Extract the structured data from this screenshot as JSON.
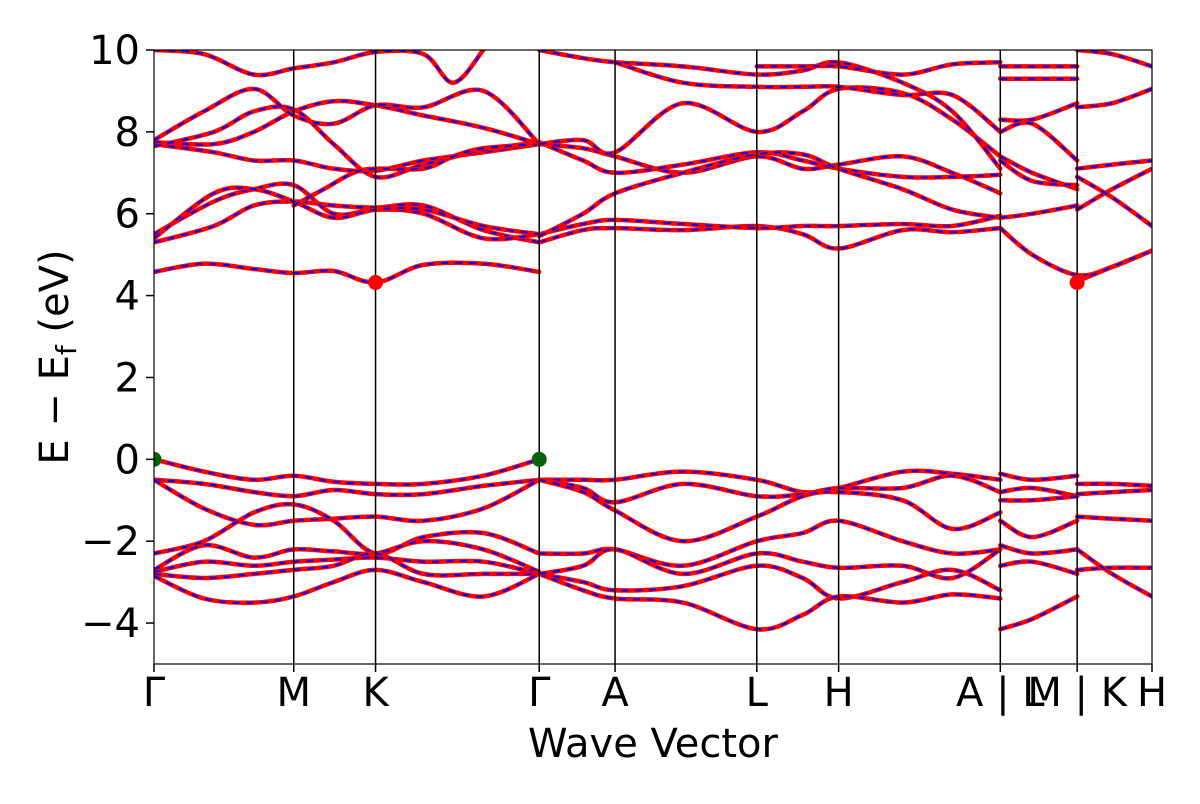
{
  "chart_data": {
    "type": "line",
    "title": "",
    "xlabel": "Wave Vector",
    "ylabel": "E − E",
    "ylabel_sub": "f",
    "ylabel_unit": " (eV)",
    "ylim": [
      -5,
      10
    ],
    "y_ticks": [
      -4,
      -2,
      0,
      2,
      4,
      6,
      8,
      10
    ],
    "grid": false,
    "legend": "none",
    "colors": {
      "band_red": "#ff0000",
      "band_blue": "#0000ff",
      "vbm": "#006400",
      "cbm": "#ff0000"
    },
    "k_path": [
      {
        "label": "Γ",
        "k": 0.0
      },
      {
        "label": "M",
        "k": 0.14
      },
      {
        "label": "K",
        "k": 0.222
      },
      {
        "label": "Γ",
        "k": 0.386
      },
      {
        "label": "A",
        "k": 0.462
      },
      {
        "label": "L",
        "k": 0.604
      },
      {
        "label": "H",
        "k": 0.686
      },
      {
        "label": "A | L",
        "k": 0.848
      },
      {
        "label": "M | K",
        "k": 0.925
      },
      {
        "label": "H",
        "k": 1.0
      }
    ],
    "highlight_points": [
      {
        "name": "VBM",
        "k": 0.0,
        "E": 0.0,
        "color": "#006400"
      },
      {
        "name": "VBM",
        "k": 0.386,
        "E": 0.0,
        "color": "#006400"
      },
      {
        "name": "CBM",
        "k": 0.222,
        "E": 4.32,
        "color": "#ff0000"
      },
      {
        "name": "CBM",
        "k": 0.925,
        "E": 4.32,
        "color": "#ff0000"
      }
    ],
    "series": [
      {
        "k": [
          0,
          0.05,
          0.1,
          0.14,
          0.18,
          0.222,
          0.27,
          0.33,
          0.386
        ],
        "E": [
          4.58,
          4.78,
          4.65,
          4.55,
          4.6,
          4.32,
          4.75,
          4.78,
          4.58
        ]
      },
      {
        "k": [
          0.386,
          0.43,
          0.462,
          0.53,
          0.604,
          0.65,
          0.686,
          0.75,
          0.8,
          0.848
        ],
        "E": [
          5.3,
          5.6,
          5.65,
          5.6,
          5.7,
          5.5,
          5.15,
          5.6,
          5.55,
          5.65
        ]
      },
      {
        "k": [
          0.386,
          0.43,
          0.462,
          0.53,
          0.604,
          0.65,
          0.686,
          0.75,
          0.8,
          0.848
        ],
        "E": [
          5.5,
          5.75,
          5.85,
          5.75,
          5.65,
          5.7,
          5.7,
          5.75,
          5.7,
          5.95
        ]
      },
      {
        "k": [
          0.848,
          0.88,
          0.925,
          0.96,
          1.0
        ],
        "E": [
          5.65,
          5.0,
          4.5,
          4.7,
          5.1
        ]
      },
      {
        "k": [
          0.925,
          0.96,
          1.0
        ],
        "E": [
          4.35,
          4.7,
          5.1
        ]
      },
      {
        "k": [
          0,
          0.06,
          0.1,
          0.14,
          0.18,
          0.222,
          0.27,
          0.33,
          0.386
        ],
        "E": [
          5.3,
          5.7,
          6.2,
          6.3,
          6.2,
          6.15,
          6.2,
          5.6,
          5.3
        ]
      },
      {
        "k": [
          0,
          0.06,
          0.1,
          0.14,
          0.18,
          0.222,
          0.27,
          0.33,
          0.386
        ],
        "E": [
          5.5,
          6.3,
          6.6,
          6.7,
          6.0,
          6.1,
          6.0,
          5.4,
          5.5
        ]
      },
      {
        "k": [
          0,
          0.06,
          0.1,
          0.14,
          0.18,
          0.222,
          0.27,
          0.33,
          0.386
        ],
        "E": [
          5.4,
          6.5,
          6.6,
          6.3,
          5.9,
          6.1,
          6.1,
          5.7,
          5.5
        ]
      },
      {
        "k": [
          0,
          0.06,
          0.1,
          0.14,
          0.18,
          0.222,
          0.27,
          0.33,
          0.386
        ],
        "E": [
          7.7,
          7.5,
          7.3,
          7.3,
          7.1,
          7.05,
          7.3,
          7.5,
          7.7
        ]
      },
      {
        "k": [
          0,
          0.06,
          0.1,
          0.14,
          0.18,
          0.222,
          0.27,
          0.33,
          0.386
        ],
        "E": [
          7.75,
          7.7,
          8.0,
          8.5,
          8.75,
          8.65,
          8.4,
          8.1,
          7.7
        ]
      },
      {
        "k": [
          0,
          0.06,
          0.1,
          0.14,
          0.18,
          0.222,
          0.27,
          0.33,
          0.386
        ],
        "E": [
          7.65,
          8.0,
          8.5,
          8.55,
          7.7,
          6.9,
          7.2,
          7.55,
          7.75
        ]
      },
      {
        "k": [
          0.14,
          0.17,
          0.2,
          0.222,
          0.27,
          0.3,
          0.33,
          0.386
        ],
        "E": [
          6.2,
          6.6,
          7.0,
          7.1,
          7.1,
          7.4,
          7.6,
          7.7
        ]
      },
      {
        "k": [
          0,
          0.05,
          0.1,
          0.14,
          0.18,
          0.222,
          0.27,
          0.33,
          0.386
        ],
        "E": [
          7.8,
          8.5,
          9.05,
          8.4,
          8.2,
          8.65,
          8.6,
          9.0,
          7.7
        ]
      },
      {
        "k": [
          0,
          0.05,
          0.1,
          0.14,
          0.18,
          0.222,
          0.27,
          0.3,
          0.33
        ],
        "E": [
          10.0,
          9.9,
          9.4,
          9.55,
          9.7,
          9.95,
          9.9,
          9.2,
          10.0
        ]
      },
      {
        "k": [
          0.386,
          0.43,
          0.462,
          0.53,
          0.604,
          0.65,
          0.686,
          0.75,
          0.8,
          0.848
        ],
        "E": [
          7.7,
          7.6,
          7.4,
          7.0,
          7.4,
          7.1,
          7.2,
          7.4,
          7.0,
          6.5
        ]
      },
      {
        "k": [
          0.386,
          0.43,
          0.462,
          0.53,
          0.604,
          0.65,
          0.686,
          0.75,
          0.8,
          0.848
        ],
        "E": [
          7.75,
          7.3,
          7.0,
          7.2,
          7.5,
          7.3,
          7.1,
          6.9,
          6.9,
          6.95
        ]
      },
      {
        "k": [
          0.386,
          0.43,
          0.462,
          0.53,
          0.604,
          0.65,
          0.686,
          0.75,
          0.8,
          0.848
        ],
        "E": [
          5.45,
          6.0,
          6.5,
          7.0,
          7.45,
          7.45,
          7.1,
          6.6,
          6.1,
          5.9
        ]
      },
      {
        "k": [
          0.386,
          0.43,
          0.462,
          0.53,
          0.604,
          0.65,
          0.686,
          0.75,
          0.8,
          0.848
        ],
        "E": [
          7.7,
          7.8,
          7.5,
          8.7,
          8.0,
          8.5,
          9.05,
          8.95,
          8.3,
          7.4
        ]
      },
      {
        "k": [
          0.386,
          0.43,
          0.462,
          0.53,
          0.604,
          0.65,
          0.686,
          0.75,
          0.8,
          0.848
        ],
        "E": [
          10.0,
          9.8,
          9.7,
          9.6,
          9.4,
          9.5,
          9.7,
          9.2,
          8.5,
          7.1
        ]
      },
      {
        "k": [
          0.462,
          0.53,
          0.604,
          0.65,
          0.686,
          0.75,
          0.8,
          0.848
        ],
        "E": [
          9.7,
          9.2,
          9.1,
          9.1,
          9.1,
          8.9,
          8.9,
          8.0
        ]
      },
      {
        "k": [
          0.604,
          0.65,
          0.686,
          0.75,
          0.8,
          0.848
        ],
        "E": [
          9.6,
          9.6,
          9.6,
          9.4,
          9.65,
          9.7
        ]
      },
      {
        "k": [
          0.848,
          0.925
        ],
        "E": [
          9.6,
          9.6
        ]
      },
      {
        "k": [
          0.848,
          0.925
        ],
        "E": [
          9.3,
          9.3
        ]
      },
      {
        "k": [
          0.848,
          0.88,
          0.925
        ],
        "E": [
          8.3,
          8.3,
          8.7
        ]
      },
      {
        "k": [
          0.848,
          0.88,
          0.925
        ],
        "E": [
          8.0,
          8.2,
          7.3
        ]
      },
      {
        "k": [
          0.848,
          0.88,
          0.925
        ],
        "E": [
          7.4,
          7.0,
          6.6
        ]
      },
      {
        "k": [
          0.848,
          0.88,
          0.925
        ],
        "E": [
          7.3,
          6.8,
          6.7
        ]
      },
      {
        "k": [
          0.848,
          0.88,
          0.925
        ],
        "E": [
          5.9,
          6.0,
          6.2
        ]
      },
      {
        "k": [
          0.925,
          0.96,
          1.0
        ],
        "E": [
          6.1,
          6.6,
          7.1
        ]
      },
      {
        "k": [
          0.925,
          0.96,
          1.0
        ],
        "E": [
          6.9,
          6.4,
          5.7
        ]
      },
      {
        "k": [
          0.925,
          0.96,
          1.0
        ],
        "E": [
          7.1,
          7.2,
          7.3
        ]
      },
      {
        "k": [
          0.925,
          0.96,
          1.0
        ],
        "E": [
          8.6,
          8.7,
          9.05
        ]
      },
      {
        "k": [
          0.925,
          0.96,
          1.0
        ],
        "E": [
          10.0,
          9.9,
          9.6
        ]
      },
      {
        "k": [
          0,
          0.05,
          0.1,
          0.14,
          0.18,
          0.222,
          0.27,
          0.33,
          0.386
        ],
        "E": [
          0.0,
          -0.3,
          -0.5,
          -0.4,
          -0.55,
          -0.6,
          -0.6,
          -0.4,
          0.0
        ]
      },
      {
        "k": [
          0,
          0.05,
          0.1,
          0.14,
          0.18,
          0.222,
          0.27,
          0.33,
          0.386
        ],
        "E": [
          -0.5,
          -0.6,
          -0.8,
          -0.9,
          -0.75,
          -0.85,
          -0.85,
          -0.65,
          -0.5
        ]
      },
      {
        "k": [
          0,
          0.05,
          0.1,
          0.14,
          0.18,
          0.222,
          0.27,
          0.33,
          0.386
        ],
        "E": [
          -0.5,
          -1.2,
          -1.6,
          -1.5,
          -1.45,
          -1.4,
          -1.5,
          -1.2,
          -0.5
        ]
      },
      {
        "k": [
          0,
          0.05,
          0.1,
          0.14,
          0.18,
          0.222,
          0.27,
          0.33,
          0.386
        ],
        "E": [
          -2.3,
          -2.0,
          -1.3,
          -1.1,
          -1.5,
          -2.3,
          -1.9,
          -1.8,
          -2.3
        ]
      },
      {
        "k": [
          0,
          0.05,
          0.1,
          0.14,
          0.18,
          0.222,
          0.27,
          0.33,
          0.386
        ],
        "E": [
          -2.7,
          -2.1,
          -2.4,
          -2.2,
          -2.25,
          -2.3,
          -2.0,
          -2.2,
          -2.75
        ]
      },
      {
        "k": [
          0,
          0.05,
          0.1,
          0.14,
          0.18,
          0.222,
          0.27,
          0.33,
          0.386
        ],
        "E": [
          -2.75,
          -2.5,
          -2.6,
          -2.5,
          -2.45,
          -2.4,
          -2.5,
          -2.5,
          -2.8
        ]
      },
      {
        "k": [
          0,
          0.05,
          0.1,
          0.14,
          0.18,
          0.222,
          0.27,
          0.33,
          0.386
        ],
        "E": [
          -2.8,
          -2.9,
          -2.8,
          -2.7,
          -2.6,
          -2.3,
          -2.8,
          -2.8,
          -2.8
        ]
      },
      {
        "k": [
          0,
          0.05,
          0.1,
          0.14,
          0.18,
          0.222,
          0.27,
          0.33,
          0.386
        ],
        "E": [
          -2.85,
          -3.4,
          -3.5,
          -3.35,
          -3.0,
          -2.7,
          -3.0,
          -3.35,
          -2.8
        ]
      },
      {
        "k": [
          0.386,
          0.43,
          0.462,
          0.53,
          0.604,
          0.65,
          0.686,
          0.75,
          0.8,
          0.848
        ],
        "E": [
          -0.5,
          -0.5,
          -0.5,
          -0.3,
          -0.5,
          -0.8,
          -0.7,
          -0.3,
          -0.35,
          -0.5
        ]
      },
      {
        "k": [
          0.386,
          0.43,
          0.462,
          0.53,
          0.604,
          0.65,
          0.686,
          0.75,
          0.8,
          0.848
        ],
        "E": [
          -0.5,
          -0.7,
          -1.05,
          -0.6,
          -0.9,
          -0.85,
          -0.7,
          -0.7,
          -0.4,
          -0.8
        ]
      },
      {
        "k": [
          0.386,
          0.43,
          0.462,
          0.53,
          0.604,
          0.65,
          0.686,
          0.75,
          0.8,
          0.848
        ],
        "E": [
          -0.5,
          -0.8,
          -1.25,
          -2.0,
          -1.4,
          -0.9,
          -0.8,
          -1.0,
          -1.7,
          -1.3
        ]
      },
      {
        "k": [
          0.386,
          0.43,
          0.462,
          0.53,
          0.604,
          0.65,
          0.686,
          0.75,
          0.8,
          0.848
        ],
        "E": [
          -2.3,
          -2.3,
          -2.2,
          -2.6,
          -2.0,
          -1.8,
          -1.5,
          -2.0,
          -2.3,
          -2.2
        ]
      },
      {
        "k": [
          0.386,
          0.43,
          0.462,
          0.53,
          0.604,
          0.65,
          0.686,
          0.75,
          0.8,
          0.848
        ],
        "E": [
          -2.8,
          -3.0,
          -3.2,
          -3.1,
          -2.6,
          -2.9,
          -3.4,
          -3.0,
          -2.7,
          -3.2
        ]
      },
      {
        "k": [
          0.386,
          0.43,
          0.462,
          0.53,
          0.604,
          0.65,
          0.686,
          0.75,
          0.8,
          0.848
        ],
        "E": [
          -2.8,
          -3.2,
          -3.4,
          -3.5,
          -4.15,
          -3.8,
          -3.35,
          -3.5,
          -3.3,
          -3.4
        ]
      },
      {
        "k": [
          0.386,
          0.43,
          0.462,
          0.53,
          0.604,
          0.65,
          0.686,
          0.75,
          0.8,
          0.848
        ],
        "E": [
          -2.8,
          -2.6,
          -2.2,
          -2.8,
          -2.3,
          -2.5,
          -2.65,
          -2.6,
          -2.9,
          -2.2
        ]
      },
      {
        "k": [
          0.848,
          0.88,
          0.925
        ],
        "E": [
          -0.35,
          -0.5,
          -0.4
        ]
      },
      {
        "k": [
          0.848,
          0.88,
          0.925
        ],
        "E": [
          -0.8,
          -0.7,
          -0.9
        ]
      },
      {
        "k": [
          0.848,
          0.88,
          0.925
        ],
        "E": [
          -1.0,
          -1.0,
          -0.9
        ]
      },
      {
        "k": [
          0.848,
          0.88,
          0.925
        ],
        "E": [
          -1.5,
          -1.9,
          -1.5
        ]
      },
      {
        "k": [
          0.848,
          0.88,
          0.925
        ],
        "E": [
          -2.1,
          -2.3,
          -2.2
        ]
      },
      {
        "k": [
          0.848,
          0.88,
          0.925
        ],
        "E": [
          -2.6,
          -2.5,
          -2.8
        ]
      },
      {
        "k": [
          0.848,
          0.88,
          0.925
        ],
        "E": [
          -4.15,
          -3.9,
          -3.35
        ]
      },
      {
        "k": [
          0.925,
          0.96,
          1.0
        ],
        "E": [
          -0.6,
          -0.6,
          -0.65
        ]
      },
      {
        "k": [
          0.925,
          0.96,
          1.0
        ],
        "E": [
          -0.85,
          -0.8,
          -0.75
        ]
      },
      {
        "k": [
          0.925,
          0.96,
          1.0
        ],
        "E": [
          -1.4,
          -1.45,
          -1.5
        ]
      },
      {
        "k": [
          0.925,
          0.96,
          1.0
        ],
        "E": [
          -2.7,
          -2.65,
          -2.65
        ]
      },
      {
        "k": [
          0.925,
          0.96,
          1.0
        ],
        "E": [
          -2.2,
          -2.8,
          -3.35
        ]
      }
    ]
  }
}
